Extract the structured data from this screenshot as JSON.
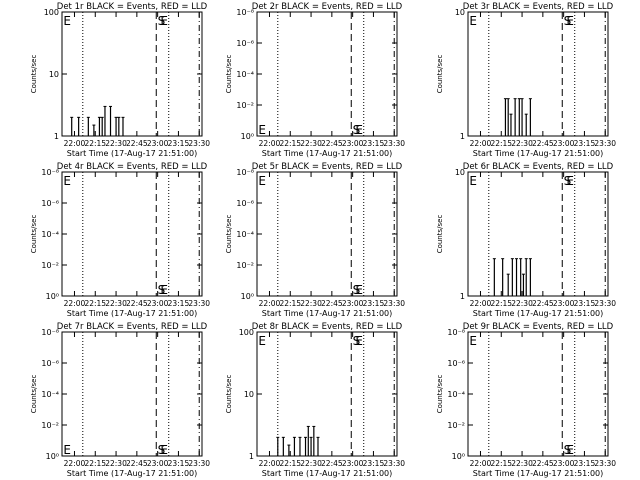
{
  "chart_data": [
    {
      "type": "line",
      "title": "Det 1r BLACK = Events, RED = LLD",
      "xlabel": "Start Time (17-Aug-17 21:51:00)",
      "ylabel": "Counts/sec",
      "x_ticks": [
        "22:00",
        "22:15",
        "22:30",
        "22:45",
        "23:00",
        "23:15",
        "23:30"
      ],
      "y_ticks": [
        "1",
        "10",
        "100"
      ],
      "y_scale": "log",
      "y_range": [
        1,
        100
      ],
      "x_range": [
        "21:51",
        "23:32"
      ],
      "dotted_lines": [
        "22:06",
        "23:08"
      ],
      "dashed_lines": [
        "22:59"
      ],
      "dashdot_lines": [
        "23:30"
      ],
      "markers": [
        {
          "text": "E",
          "x": "21:52",
          "at": "top"
        },
        {
          "text": "S",
          "x": "23:00",
          "at": "top"
        },
        {
          "text": "E",
          "x": "23:02",
          "at": "top"
        }
      ],
      "series": [
        {
          "x": [
            "21:58",
            "22:03",
            "22:08",
            "22:10",
            "22:14",
            "22:18",
            "22:20",
            "22:22",
            "22:26",
            "22:30",
            "22:32",
            "22:35"
          ],
          "values": [
            2,
            2,
            1,
            2,
            1.5,
            2,
            2,
            3,
            3,
            2,
            2,
            2
          ]
        }
      ]
    },
    {
      "type": "line",
      "title": "Det 2r BLACK = Events, RED = LLD",
      "xlabel": "Start Time (17-Aug-17 21:51:00)",
      "ylabel": "Counts/sec",
      "x_ticks": [
        "22:00",
        "22:15",
        "22:30",
        "22:45",
        "23:00",
        "23:15",
        "23:30"
      ],
      "y_ticks": [
        "10⁰",
        "10⁻²",
        "10⁻⁴",
        "10⁻⁶",
        "10⁻⁸"
      ],
      "y_scale": "log",
      "y_range": [
        1,
        100000000
      ],
      "x_range": [
        "21:51",
        "23:32"
      ],
      "dotted_lines": [
        "22:06",
        "23:08"
      ],
      "dashed_lines": [
        "22:59"
      ],
      "dashdot_lines": [
        "23:30"
      ],
      "markers": [
        {
          "text": "E",
          "x": "21:52",
          "at": "bottom"
        },
        {
          "text": "S",
          "x": "23:00",
          "at": "bottom"
        },
        {
          "text": "E",
          "x": "23:02",
          "at": "bottom"
        }
      ],
      "series": []
    },
    {
      "type": "line",
      "title": "Det 3r BLACK = Events, RED = LLD",
      "xlabel": "Start Time (17-Aug-17 21:51:00)",
      "ylabel": "Counts/sec",
      "x_ticks": [
        "22:00",
        "22:15",
        "22:30",
        "22:45",
        "23:00",
        "23:15",
        "23:30"
      ],
      "y_ticks": [
        "1",
        "10"
      ],
      "y_scale": "log",
      "y_range": [
        1,
        10
      ],
      "x_range": [
        "21:51",
        "23:32"
      ],
      "dotted_lines": [
        "22:06",
        "23:08"
      ],
      "dashed_lines": [
        "22:59"
      ],
      "dashdot_lines": [
        "23:30"
      ],
      "markers": [
        {
          "text": "E",
          "x": "21:52",
          "at": "top"
        },
        {
          "text": "S",
          "x": "23:00",
          "at": "top"
        },
        {
          "text": "E",
          "x": "23:02",
          "at": "top"
        }
      ],
      "series": [
        {
          "x": [
            "22:18",
            "22:20",
            "22:22",
            "22:25",
            "22:28",
            "22:30",
            "22:33",
            "22:36"
          ],
          "values": [
            2,
            2,
            1.5,
            2,
            2,
            2,
            1.5,
            2
          ]
        }
      ]
    },
    {
      "type": "line",
      "title": "Det 4r BLACK = Events, RED = LLD",
      "xlabel": "Start Time (17-Aug-17 21:51:00)",
      "ylabel": "Counts/sec",
      "x_ticks": [
        "22:00",
        "22:15",
        "22:30",
        "22:45",
        "23:00",
        "23:15",
        "23:30"
      ],
      "y_ticks": [
        "10⁰",
        "10⁻²",
        "10⁻⁴",
        "10⁻⁶",
        "10⁻⁸"
      ],
      "y_scale": "log",
      "y_range": [
        1,
        100000000
      ],
      "x_range": [
        "21:51",
        "23:32"
      ],
      "dotted_lines": [
        "22:06",
        "23:08"
      ],
      "dashed_lines": [
        "22:59"
      ],
      "dashdot_lines": [
        "23:30"
      ],
      "markers": [
        {
          "text": "E",
          "x": "21:52",
          "at": "top"
        },
        {
          "text": "S",
          "x": "23:00",
          "at": "bottom"
        },
        {
          "text": "E",
          "x": "23:02",
          "at": "bottom"
        }
      ],
      "series": []
    },
    {
      "type": "line",
      "title": "Det 5r BLACK = Events, RED = LLD",
      "xlabel": "Start Time (17-Aug-17 21:51:00)",
      "ylabel": "Counts/sec",
      "x_ticks": [
        "22:00",
        "22:15",
        "22:30",
        "22:45",
        "23:00",
        "23:15",
        "23:30"
      ],
      "y_ticks": [
        "10⁰",
        "10⁻²",
        "10⁻⁴",
        "10⁻⁶",
        "10⁻⁸"
      ],
      "y_scale": "log",
      "y_range": [
        1,
        100000000
      ],
      "x_range": [
        "21:51",
        "23:32"
      ],
      "dotted_lines": [
        "22:06",
        "23:08"
      ],
      "dashed_lines": [
        "22:59"
      ],
      "dashdot_lines": [
        "23:30"
      ],
      "markers": [
        {
          "text": "E",
          "x": "21:52",
          "at": "top"
        },
        {
          "text": "S",
          "x": "23:00",
          "at": "bottom"
        },
        {
          "text": "E",
          "x": "23:02",
          "at": "bottom"
        }
      ],
      "series": []
    },
    {
      "type": "line",
      "title": "Det 6r BLACK = Events, RED = LLD",
      "xlabel": "Start Time (17-Aug-17 21:51:00)",
      "ylabel": "Counts/sec",
      "x_ticks": [
        "22:00",
        "22:15",
        "22:30",
        "22:45",
        "23:00",
        "23:15",
        "23:30"
      ],
      "y_ticks": [
        "1",
        "10"
      ],
      "y_scale": "log",
      "y_range": [
        1,
        10
      ],
      "x_range": [
        "21:51",
        "23:32"
      ],
      "dotted_lines": [
        "22:06",
        "23:08"
      ],
      "dashed_lines": [
        "22:59"
      ],
      "dashdot_lines": [
        "23:30"
      ],
      "markers": [
        {
          "text": "E",
          "x": "21:52",
          "at": "top"
        },
        {
          "text": "S",
          "x": "23:00",
          "at": "top"
        },
        {
          "text": "E",
          "x": "23:02",
          "at": "top"
        }
      ],
      "series": [
        {
          "x": [
            "22:10",
            "22:16",
            "22:20",
            "22:23",
            "22:26",
            "22:29",
            "22:31",
            "22:33",
            "22:36"
          ],
          "values": [
            2,
            2,
            1.5,
            2,
            2,
            2,
            1.5,
            2,
            2
          ]
        }
      ]
    },
    {
      "type": "line",
      "title": "Det 7r BLACK = Events, RED = LLD",
      "xlabel": "Start Time (17-Aug-17 21:51:00)",
      "ylabel": "Counts/sec",
      "x_ticks": [
        "22:00",
        "22:15",
        "22:30",
        "22:45",
        "23:00",
        "23:15",
        "23:30"
      ],
      "y_ticks": [
        "10⁰",
        "10⁻²",
        "10⁻⁴",
        "10⁻⁶",
        "10⁻⁸"
      ],
      "y_scale": "log",
      "y_range": [
        1,
        100000000
      ],
      "x_range": [
        "21:51",
        "23:32"
      ],
      "dotted_lines": [
        "22:06",
        "23:08"
      ],
      "dashed_lines": [
        "22:59"
      ],
      "dashdot_lines": [
        "23:30"
      ],
      "markers": [
        {
          "text": "E",
          "x": "21:52",
          "at": "bottom"
        },
        {
          "text": "S",
          "x": "23:00",
          "at": "bottom"
        },
        {
          "text": "E",
          "x": "23:02",
          "at": "bottom"
        }
      ],
      "series": []
    },
    {
      "type": "line",
      "title": "Det 8r BLACK = Events, RED = LLD",
      "xlabel": "Start Time (17-Aug-17 21:51:00)",
      "ylabel": "Counts/sec",
      "x_ticks": [
        "22:00",
        "22:15",
        "22:30",
        "22:45",
        "23:00",
        "23:15",
        "23:30"
      ],
      "y_ticks": [
        "1",
        "10",
        "100"
      ],
      "y_scale": "log",
      "y_range": [
        1,
        100
      ],
      "x_range": [
        "21:51",
        "23:32"
      ],
      "dotted_lines": [
        "22:06",
        "23:08"
      ],
      "dashed_lines": [
        "22:59"
      ],
      "dashdot_lines": [
        "23:30"
      ],
      "markers": [
        {
          "text": "E",
          "x": "21:52",
          "at": "top"
        },
        {
          "text": "S",
          "x": "23:00",
          "at": "top"
        },
        {
          "text": "E",
          "x": "23:02",
          "at": "top"
        }
      ],
      "series": [
        {
          "x": [
            "22:06",
            "22:10",
            "22:14",
            "22:18",
            "22:22",
            "22:26",
            "22:28",
            "22:30",
            "22:32",
            "22:35"
          ],
          "values": [
            2,
            2,
            1.5,
            2,
            2,
            2,
            3,
            2,
            3,
            2
          ]
        }
      ]
    },
    {
      "type": "line",
      "title": "Det 9r BLACK = Events, RED = LLD",
      "xlabel": "Start Time (17-Aug-17 21:51:00)",
      "ylabel": "Counts/sec",
      "x_ticks": [
        "22:00",
        "22:15",
        "22:30",
        "22:45",
        "23:00",
        "23:15",
        "23:30"
      ],
      "y_ticks": [
        "10⁰",
        "10⁻²",
        "10⁻⁴",
        "10⁻⁶",
        "10⁻⁸"
      ],
      "y_scale": "log",
      "y_range": [
        1,
        100000000
      ],
      "x_range": [
        "21:51",
        "23:32"
      ],
      "dotted_lines": [
        "22:06",
        "23:08"
      ],
      "dashed_lines": [
        "22:59"
      ],
      "dashdot_lines": [
        "23:30"
      ],
      "markers": [
        {
          "text": "E",
          "x": "21:52",
          "at": "top"
        },
        {
          "text": "S",
          "x": "23:00",
          "at": "bottom"
        },
        {
          "text": "E",
          "x": "23:02",
          "at": "bottom"
        }
      ],
      "series": []
    }
  ]
}
